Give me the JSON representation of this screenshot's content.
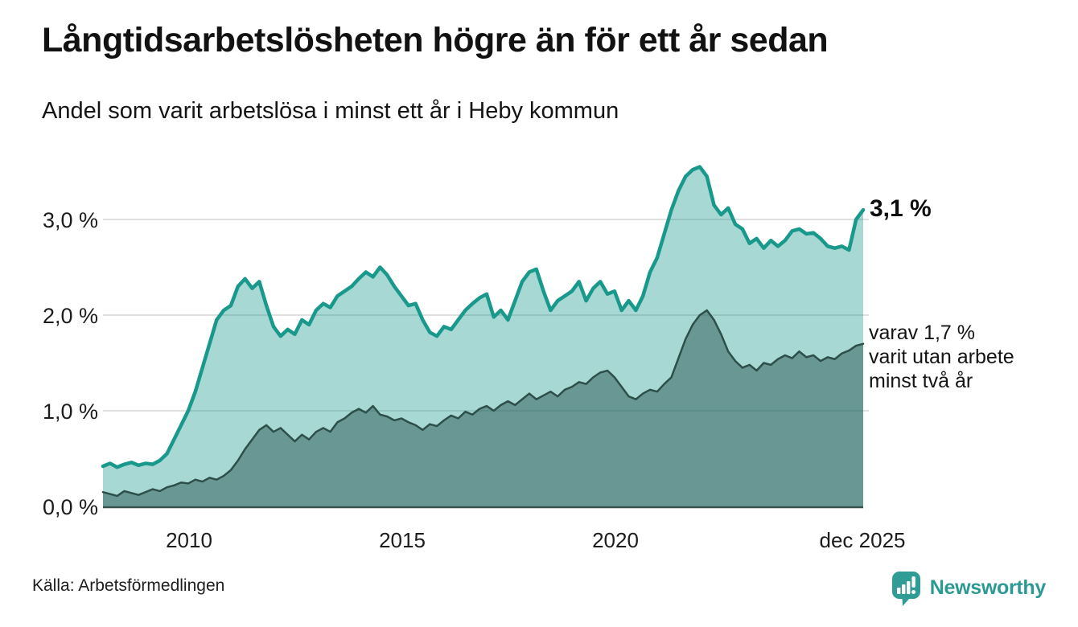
{
  "header": {
    "title": "Långtidsarbetslösheten högre än för ett år sedan",
    "subtitle": "Andel som varit arbetslösa i minst ett år i Heby kommun"
  },
  "footer": {
    "source": "Källa: Arbetsförmedlingen",
    "brand_name": "Newsworthy"
  },
  "chart_data": {
    "type": "area",
    "title": "Långtidsarbetslösheten högre än för ett år sedan",
    "subtitle": "Andel som varit arbetslösa i minst ett år i Heby kommun",
    "x_start_year": 2008,
    "x_end_label": "dec 2025",
    "xtick_labels": [
      "2010",
      "2015",
      "2020",
      "dec 2025"
    ],
    "ytick_labels": [
      "0,0 %",
      "1,0 %",
      "2,0 %",
      "3,0 %"
    ],
    "ytick_values": [
      0,
      1,
      2,
      3
    ],
    "grid_values": [
      1,
      2,
      3
    ],
    "ylim": [
      0,
      3.6
    ],
    "grid_color": "#d6d6d6",
    "axis_color": "#37514d",
    "end_label": "3,1 %",
    "end_value": 3.1,
    "annotation_lines": [
      "varav 1,7 %",
      "varit utan arbete",
      "minst två år"
    ],
    "annotation_value": 1.7,
    "series": [
      {
        "name": "arbetslösa minst ett år",
        "line_color": "#18998b",
        "line_width": 4.5,
        "fill_color": "rgba(24,153,139,0.38)",
        "values": [
          0.42,
          0.45,
          0.41,
          0.44,
          0.46,
          0.43,
          0.45,
          0.44,
          0.48,
          0.55,
          0.7,
          0.85,
          1.0,
          1.2,
          1.45,
          1.7,
          1.95,
          2.05,
          2.1,
          2.3,
          2.38,
          2.28,
          2.35,
          2.1,
          1.88,
          1.78,
          1.85,
          1.8,
          1.95,
          1.9,
          2.05,
          2.12,
          2.08,
          2.2,
          2.25,
          2.3,
          2.38,
          2.45,
          2.4,
          2.5,
          2.42,
          2.3,
          2.2,
          2.1,
          2.12,
          1.95,
          1.82,
          1.78,
          1.88,
          1.85,
          1.95,
          2.05,
          2.12,
          2.18,
          2.22,
          1.98,
          2.05,
          1.95,
          2.15,
          2.35,
          2.45,
          2.48,
          2.25,
          2.05,
          2.15,
          2.2,
          2.25,
          2.35,
          2.15,
          2.28,
          2.35,
          2.22,
          2.25,
          2.05,
          2.15,
          2.05,
          2.2,
          2.45,
          2.6,
          2.85,
          3.1,
          3.3,
          3.45,
          3.52,
          3.55,
          3.45,
          3.15,
          3.05,
          3.12,
          2.95,
          2.9,
          2.75,
          2.8,
          2.7,
          2.78,
          2.72,
          2.78,
          2.88,
          2.9,
          2.85,
          2.86,
          2.8,
          2.72,
          2.7,
          2.72,
          2.68,
          3.0,
          3.1
        ]
      },
      {
        "name": "arbetslösa minst två år",
        "line_color": "#2e4f49",
        "line_width": 2.5,
        "fill_color": "rgba(32,76,70,0.45)",
        "values": [
          0.15,
          0.13,
          0.11,
          0.16,
          0.14,
          0.12,
          0.15,
          0.18,
          0.16,
          0.2,
          0.22,
          0.25,
          0.24,
          0.28,
          0.26,
          0.3,
          0.28,
          0.32,
          0.38,
          0.48,
          0.6,
          0.7,
          0.8,
          0.85,
          0.78,
          0.82,
          0.75,
          0.68,
          0.75,
          0.7,
          0.78,
          0.82,
          0.78,
          0.88,
          0.92,
          0.98,
          1.02,
          0.98,
          1.05,
          0.96,
          0.94,
          0.9,
          0.92,
          0.88,
          0.85,
          0.8,
          0.86,
          0.84,
          0.9,
          0.95,
          0.92,
          0.99,
          0.96,
          1.02,
          1.05,
          1.0,
          1.06,
          1.1,
          1.06,
          1.12,
          1.18,
          1.12,
          1.16,
          1.2,
          1.15,
          1.22,
          1.25,
          1.3,
          1.28,
          1.35,
          1.4,
          1.42,
          1.35,
          1.25,
          1.15,
          1.12,
          1.18,
          1.22,
          1.2,
          1.28,
          1.35,
          1.55,
          1.75,
          1.9,
          2.0,
          2.05,
          1.95,
          1.8,
          1.62,
          1.52,
          1.45,
          1.48,
          1.42,
          1.5,
          1.48,
          1.54,
          1.58,
          1.55,
          1.62,
          1.56,
          1.58,
          1.52,
          1.56,
          1.54,
          1.6,
          1.63,
          1.68,
          1.7
        ]
      }
    ],
    "brand_color": "#2f9d96"
  }
}
